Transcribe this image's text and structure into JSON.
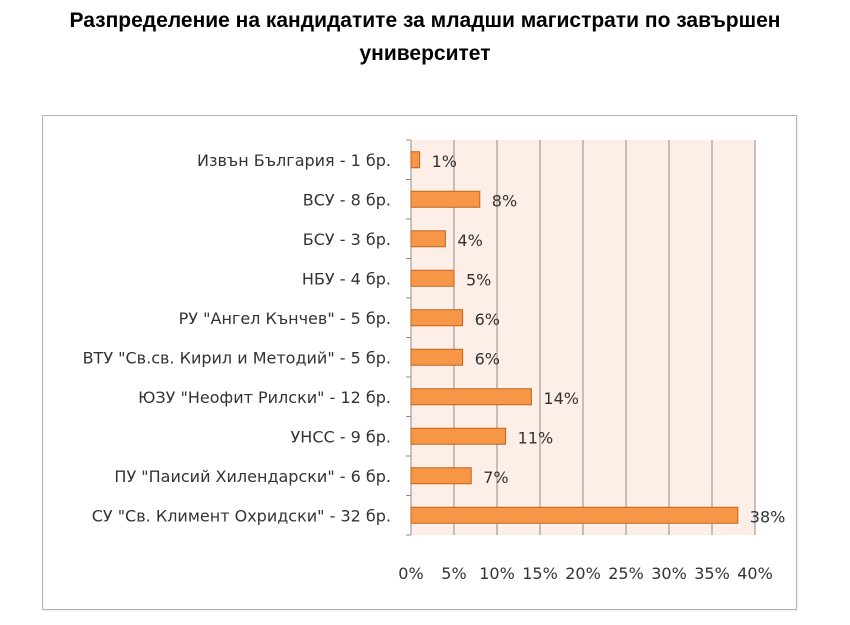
{
  "chart_data": {
    "type": "bar",
    "orientation": "horizontal",
    "title_lines": [
      "Разпределение на кандидатите за младши магистрати по завършен",
      "университет"
    ],
    "categories": [
      "Извън България - 1 бр.",
      "ВСУ - 8 бр.",
      "БСУ - 3 бр.",
      "НБУ - 4 бр.",
      "РУ \"Ангел Кънчев\" - 5 бр.",
      "ВТУ \"Св.св. Кирил и Методий\" - 5 бр.",
      "ЮЗУ \"Неофит Рилски\" - 12 бр.",
      "УНСС - 9 бр.",
      "ПУ \"Паисий Хилендарски\" - 6 бр.",
      "СУ \"Св. Климент Охридски\" - 32 бр."
    ],
    "values": [
      1,
      8,
      4,
      5,
      6,
      6,
      14,
      11,
      7,
      38
    ],
    "data_labels": [
      "1%",
      "8%",
      "4%",
      "5%",
      "6%",
      "6%",
      "14%",
      "11%",
      "7%",
      "38%"
    ],
    "xlim": [
      0,
      40
    ],
    "x_ticks": [
      "0%",
      "5%",
      "10%",
      "15%",
      "20%",
      "25%",
      "30%",
      "35%",
      "40%"
    ],
    "grid": true,
    "legend": "none",
    "colors": {
      "bar_fill": "#f79646",
      "bar_stroke": "#c0651f",
      "plot_background": "#fdeee8",
      "gridline": "#8c8c8c"
    }
  }
}
